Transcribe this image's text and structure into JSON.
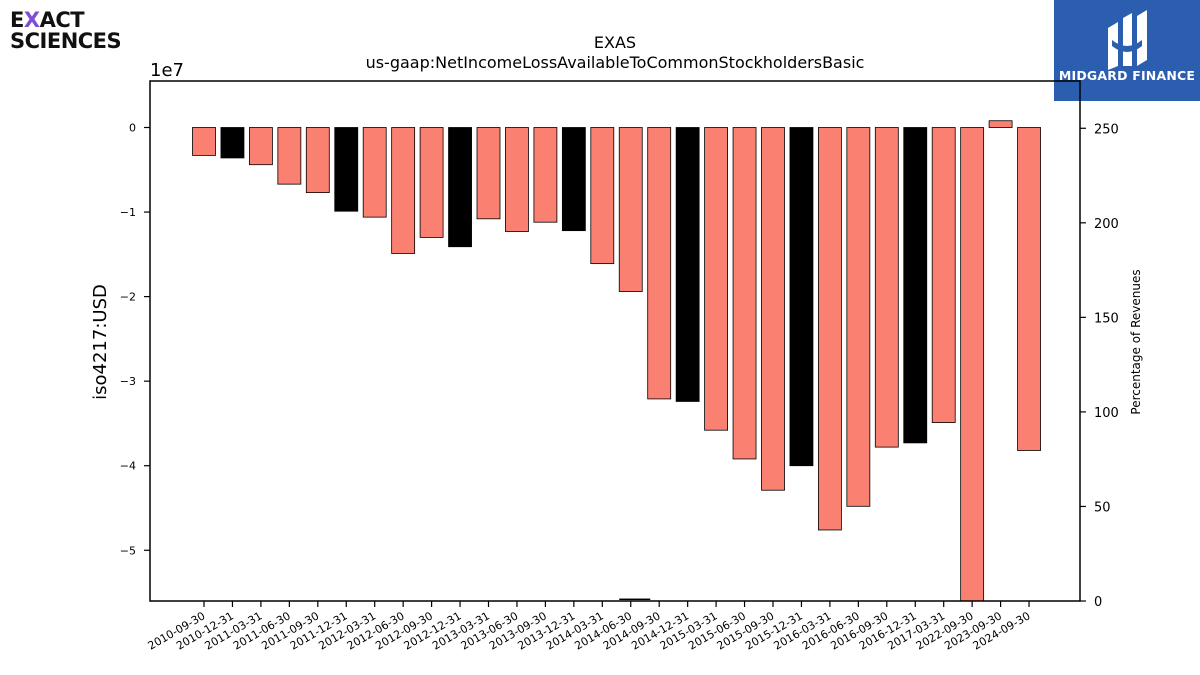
{
  "logos": {
    "left_line1_pre": "E",
    "left_line1_x": "X",
    "left_line1_post": "ACT",
    "left_line2": "SCIENCES",
    "right_text": "MIDGARD FINANCE"
  },
  "chart_data": {
    "type": "bar",
    "title": "EXAS",
    "subtitle": "us-gaap:NetIncomeLossAvailableToCommonStockholdersBasic",
    "ylabel": "iso4217:USD",
    "y_multiplier": "1e7",
    "y2label": "Percentage of Revenues",
    "ylim": [
      -56000000,
      5500000
    ],
    "y2lim": [
      0,
      275
    ],
    "yticks": [
      0,
      -10000000,
      -20000000,
      -30000000,
      -40000000,
      -50000000
    ],
    "ytick_labels": [
      "0",
      "−1",
      "−2",
      "−3",
      "−4",
      "−5"
    ],
    "y2ticks": [
      0,
      50,
      100,
      150,
      200,
      250
    ],
    "y2tick_labels": [
      "0",
      "50",
      "100",
      "150",
      "200",
      "250"
    ],
    "grid": false,
    "colors": {
      "quarterly": "#fa8072",
      "annual": "#000000",
      "edge": "#000000"
    },
    "categories": [
      "2010-09-30",
      "2010-12-31",
      "2011-03-31",
      "2011-06-30",
      "2011-09-30",
      "2011-12-31",
      "2012-03-31",
      "2012-06-30",
      "2012-09-30",
      "2012-12-31",
      "2013-03-31",
      "2013-06-30",
      "2013-09-30",
      "2013-12-31",
      "2014-03-31",
      "2014-06-30",
      "2014-09-30",
      "2014-12-31",
      "2015-03-31",
      "2015-06-30",
      "2015-09-30",
      "2015-12-31",
      "2016-03-31",
      "2016-06-30",
      "2016-09-30",
      "2016-12-31",
      "2017-03-31",
      "2022-09-30",
      "2023-09-30",
      "2024-09-30"
    ],
    "values": [
      -3300000,
      -3600000,
      -4400000,
      -6700000,
      -7700000,
      -9900000,
      -10600000,
      -14900000,
      -13000000,
      -14100000,
      -10800000,
      -12300000,
      -11200000,
      -12200000,
      -16100000,
      -19400000,
      -32100000,
      -32400000,
      -35800000,
      -39200000,
      -42900000,
      -40000000,
      -47600000,
      -44800000,
      -37800000,
      -37300000,
      -34900000,
      -56000000,
      800000,
      -38200000
    ],
    "bar_kind": [
      "quarterly",
      "annual",
      "quarterly",
      "quarterly",
      "quarterly",
      "annual",
      "quarterly",
      "quarterly",
      "quarterly",
      "annual",
      "quarterly",
      "quarterly",
      "quarterly",
      "annual",
      "quarterly",
      "quarterly",
      "quarterly",
      "annual",
      "quarterly",
      "quarterly",
      "quarterly",
      "annual",
      "quarterly",
      "quarterly",
      "quarterly",
      "annual",
      "quarterly",
      "quarterly",
      "quarterly",
      "quarterly"
    ],
    "pct_of_revenues": [
      null,
      null,
      null,
      null,
      null,
      null,
      null,
      null,
      null,
      null,
      null,
      null,
      null,
      null,
      null,
      0.5,
      null,
      null,
      null,
      null,
      null,
      null,
      null,
      null,
      null,
      null,
      null,
      null,
      null,
      null
    ]
  }
}
